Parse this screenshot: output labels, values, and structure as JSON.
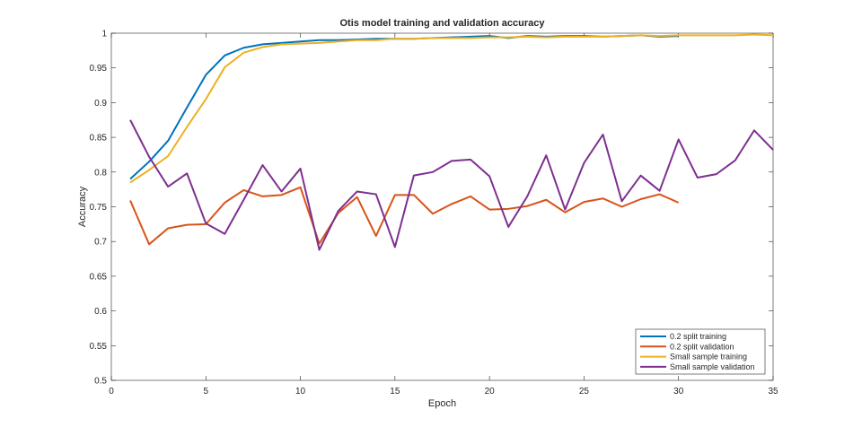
{
  "chart_data": {
    "type": "line",
    "title": "Otis model training and validation accuracy",
    "xlabel": "Epoch",
    "ylabel": "Accuracy",
    "xlim": [
      0,
      35
    ],
    "ylim": [
      0.5,
      1
    ],
    "xticks": [
      0,
      5,
      10,
      15,
      20,
      25,
      30,
      35
    ],
    "yticks": [
      0.5,
      0.55,
      0.6,
      0.65,
      0.7,
      0.75,
      0.8,
      0.85,
      0.9,
      0.95,
      1
    ],
    "grid": false,
    "legend_position": "bottom-right",
    "series": [
      {
        "name": "0.2 split training",
        "color": "#0072BD",
        "x": [
          1,
          2,
          3,
          4,
          5,
          6,
          7,
          8,
          9,
          10,
          11,
          12,
          13,
          14,
          15,
          16,
          17,
          18,
          19,
          20,
          21,
          22,
          23,
          24,
          25,
          26,
          27,
          28,
          29,
          30
        ],
        "values": [
          0.79,
          0.815,
          0.845,
          0.893,
          0.94,
          0.968,
          0.979,
          0.984,
          0.986,
          0.988,
          0.99,
          0.99,
          0.991,
          0.992,
          0.992,
          0.992,
          0.993,
          0.994,
          0.995,
          0.996,
          0.993,
          0.996,
          0.995,
          0.996,
          0.996,
          0.995,
          0.996,
          0.997,
          0.995,
          0.996
        ]
      },
      {
        "name": "0.2 split validation",
        "color": "#D95319",
        "x": [
          1,
          2,
          3,
          4,
          5,
          6,
          7,
          8,
          9,
          10,
          11,
          12,
          13,
          14,
          15,
          16,
          17,
          18,
          19,
          20,
          21,
          22,
          23,
          24,
          25,
          26,
          27,
          28,
          29,
          30
        ],
        "values": [
          0.759,
          0.696,
          0.719,
          0.724,
          0.725,
          0.756,
          0.774,
          0.765,
          0.767,
          0.778,
          0.697,
          0.741,
          0.764,
          0.708,
          0.767,
          0.767,
          0.74,
          0.754,
          0.765,
          0.746,
          0.747,
          0.751,
          0.76,
          0.742,
          0.757,
          0.762,
          0.75,
          0.761,
          0.768,
          0.756
        ]
      },
      {
        "name": "Small sample training",
        "color": "#EDB120",
        "x": [
          1,
          2,
          3,
          4,
          5,
          6,
          7,
          8,
          9,
          10,
          11,
          12,
          13,
          14,
          15,
          16,
          17,
          18,
          19,
          20,
          21,
          22,
          23,
          24,
          25,
          26,
          27,
          28,
          29,
          30,
          31,
          32,
          33,
          34,
          35
        ],
        "values": [
          0.785,
          0.803,
          0.823,
          0.865,
          0.905,
          0.951,
          0.972,
          0.98,
          0.984,
          0.985,
          0.986,
          0.988,
          0.99,
          0.99,
          0.992,
          0.992,
          0.993,
          0.993,
          0.993,
          0.994,
          0.994,
          0.995,
          0.994,
          0.995,
          0.995,
          0.995,
          0.996,
          0.997,
          0.996,
          0.997,
          0.997,
          0.997,
          0.997,
          0.998,
          0.997
        ]
      },
      {
        "name": "Small sample validation",
        "color": "#7E2F8E",
        "x": [
          1,
          2,
          3,
          4,
          5,
          6,
          7,
          8,
          9,
          10,
          11,
          12,
          13,
          14,
          15,
          16,
          17,
          18,
          19,
          20,
          21,
          22,
          23,
          24,
          25,
          26,
          27,
          28,
          29,
          30,
          31,
          32,
          33,
          34,
          35
        ],
        "values": [
          0.875,
          0.822,
          0.779,
          0.798,
          0.726,
          0.711,
          0.76,
          0.81,
          0.772,
          0.805,
          0.688,
          0.744,
          0.772,
          0.768,
          0.692,
          0.795,
          0.8,
          0.816,
          0.818,
          0.794,
          0.721,
          0.765,
          0.824,
          0.746,
          0.813,
          0.854,
          0.758,
          0.795,
          0.773,
          0.847,
          0.792,
          0.797,
          0.817,
          0.86,
          0.832
        ]
      }
    ]
  }
}
